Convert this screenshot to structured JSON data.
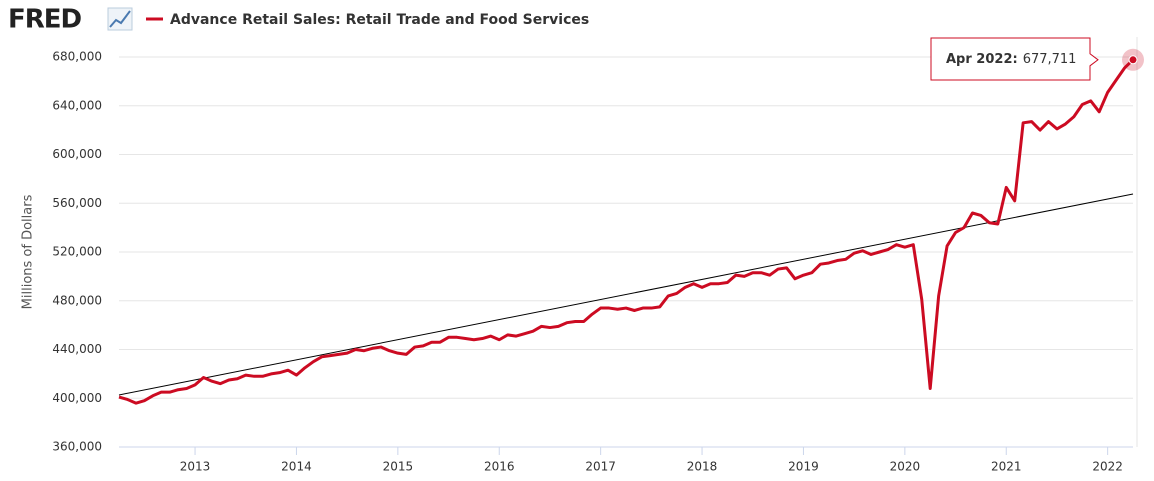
{
  "header": {
    "logo": "FRED"
  },
  "chart_data": {
    "type": "line",
    "y_label": "Millions of Dollars",
    "x": [
      "2012-04",
      "2012-05",
      "2012-06",
      "2012-07",
      "2012-08",
      "2012-09",
      "2012-10",
      "2012-11",
      "2012-12",
      "2013-01",
      "2013-02",
      "2013-03",
      "2013-04",
      "2013-05",
      "2013-06",
      "2013-07",
      "2013-08",
      "2013-09",
      "2013-10",
      "2013-11",
      "2013-12",
      "2014-01",
      "2014-02",
      "2014-03",
      "2014-04",
      "2014-05",
      "2014-06",
      "2014-07",
      "2014-08",
      "2014-09",
      "2014-10",
      "2014-11",
      "2014-12",
      "2015-01",
      "2015-02",
      "2015-03",
      "2015-04",
      "2015-05",
      "2015-06",
      "2015-07",
      "2015-08",
      "2015-09",
      "2015-10",
      "2015-11",
      "2015-12",
      "2016-01",
      "2016-02",
      "2016-03",
      "2016-04",
      "2016-05",
      "2016-06",
      "2016-07",
      "2016-08",
      "2016-09",
      "2016-10",
      "2016-11",
      "2016-12",
      "2017-01",
      "2017-02",
      "2017-03",
      "2017-04",
      "2017-05",
      "2017-06",
      "2017-07",
      "2017-08",
      "2017-09",
      "2017-10",
      "2017-11",
      "2017-12",
      "2018-01",
      "2018-02",
      "2018-03",
      "2018-04",
      "2018-05",
      "2018-06",
      "2018-07",
      "2018-08",
      "2018-09",
      "2018-10",
      "2018-11",
      "2018-12",
      "2019-01",
      "2019-02",
      "2019-03",
      "2019-04",
      "2019-05",
      "2019-06",
      "2019-07",
      "2019-08",
      "2019-09",
      "2019-10",
      "2019-11",
      "2019-12",
      "2020-01",
      "2020-02",
      "2020-03",
      "2020-04",
      "2020-05",
      "2020-06",
      "2020-07",
      "2020-08",
      "2020-09",
      "2020-10",
      "2020-11",
      "2020-12",
      "2021-01",
      "2021-02",
      "2021-03",
      "2021-04",
      "2021-05",
      "2021-06",
      "2021-07",
      "2021-08",
      "2021-09",
      "2021-10",
      "2021-11",
      "2021-12",
      "2022-01",
      "2022-02",
      "2022-03",
      "2022-04"
    ],
    "series": [
      {
        "name": "Advance Retail Sales: Retail Trade and Food Services",
        "color": "#cc0b22",
        "values": [
          401000,
          399000,
          396000,
          398000,
          402000,
          405000,
          405000,
          407000,
          408000,
          411000,
          417000,
          414000,
          412000,
          415000,
          416000,
          419000,
          418000,
          418000,
          420000,
          421000,
          423000,
          419000,
          425000,
          430000,
          434000,
          435000,
          436000,
          437000,
          440000,
          439000,
          441000,
          442000,
          439000,
          437000,
          436000,
          442000,
          443000,
          446000,
          446000,
          450000,
          450000,
          449000,
          448000,
          449000,
          451000,
          448000,
          452000,
          451000,
          453000,
          455000,
          459000,
          458000,
          459000,
          462000,
          463000,
          463000,
          469000,
          474000,
          474000,
          473000,
          474000,
          472000,
          474000,
          474000,
          475000,
          484000,
          486000,
          491000,
          494000,
          491000,
          494000,
          494000,
          495000,
          501000,
          500000,
          503000,
          503000,
          501000,
          506000,
          507000,
          498000,
          501000,
          503000,
          510000,
          511000,
          513000,
          514000,
          519000,
          521000,
          518000,
          520000,
          522000,
          526000,
          524000,
          526000,
          481000,
          408000,
          484000,
          525000,
          536000,
          540000,
          552000,
          550000,
          544000,
          543000,
          573000,
          562000,
          626000,
          627000,
          620000,
          627000,
          621000,
          625000,
          631000,
          641000,
          644000,
          635000,
          651000,
          661000,
          671000,
          677711
        ]
      }
    ],
    "reference_line": {
      "x": [
        "2012-04",
        "2022-04"
      ],
      "values": [
        402700,
        567600
      ],
      "color": "#000000"
    },
    "xlim": [
      "2012-04",
      "2022-04"
    ],
    "xticks": [
      "2013",
      "2014",
      "2015",
      "2016",
      "2017",
      "2018",
      "2019",
      "2020",
      "2021",
      "2022"
    ],
    "ylim": [
      360000,
      680000
    ],
    "yticks": [
      {
        "value": 360000,
        "label": "360,000"
      },
      {
        "value": 400000,
        "label": "400,000"
      },
      {
        "value": 440000,
        "label": "440,000"
      },
      {
        "value": 480000,
        "label": "480,000"
      },
      {
        "value": 520000,
        "label": "520,000"
      },
      {
        "value": 560000,
        "label": "560,000"
      },
      {
        "value": 600000,
        "label": "600,000"
      },
      {
        "value": 640000,
        "label": "640,000"
      },
      {
        "value": 680000,
        "label": "680,000"
      }
    ],
    "grid": true,
    "tooltip": {
      "date": "Apr 2022:",
      "value_label": "677,711"
    }
  }
}
